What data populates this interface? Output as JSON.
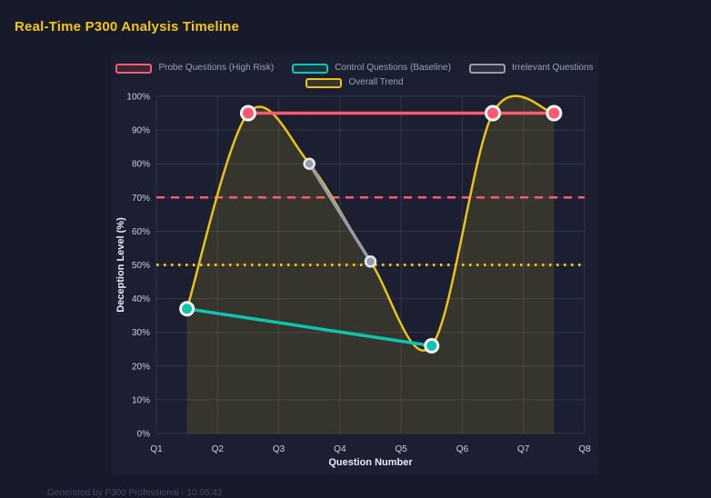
{
  "window": {
    "title": "Real-Time P300 Analysis Timeline",
    "footer_note": "Generated by P300 Professional - 10:05:42"
  },
  "colors": {
    "background": "#171a2a",
    "panel": "#1b1f31",
    "grid": "rgba(255,255,255,0.10)",
    "tick_label": "#ccd1dd",
    "axis_title": "#e9ecf4",
    "legend_label": "#9aa1b5",
    "title": "#f2c618",
    "footer": "#454b63",
    "area_fill": "rgba(233,195,25,0.13)"
  },
  "chart_data": {
    "type": "line",
    "title": "Real-Time P300 Analysis Timeline",
    "xlabel": "Question Number",
    "ylabel": "Deception Level (%)",
    "x_ticks": [
      "Q1",
      "Q2",
      "Q3",
      "Q4",
      "Q5",
      "Q6",
      "Q7",
      "Q8"
    ],
    "x_range": [
      1,
      8
    ],
    "ylim": [
      0,
      100
    ],
    "y_tick_step": 10,
    "y_tick_suffix": "%",
    "grid": true,
    "legend_position": "top",
    "legend_rows": [
      [
        0,
        1,
        2
      ],
      [
        3
      ]
    ],
    "series": [
      {
        "name": "Probe Questions (High Risk)",
        "slug": "probe",
        "color": "#fb5a6e",
        "points": [
          [
            2.5,
            95
          ],
          [
            6.5,
            95
          ],
          [
            7.5,
            95
          ]
        ],
        "line_width": 3.5,
        "marker_radius": 7.5,
        "marker_stroke": "#f4f5f7",
        "marker_stroke_width": 3,
        "smooth": false,
        "fill": false,
        "z": 4
      },
      {
        "name": "Control Questions (Baseline)",
        "slug": "control",
        "color": "#12c2b0",
        "points": [
          [
            1.5,
            37
          ],
          [
            5.5,
            26
          ]
        ],
        "line_width": 3.5,
        "marker_radius": 7,
        "marker_stroke": "#f4f5f7",
        "marker_stroke_width": 3,
        "smooth": false,
        "fill": false,
        "z": 3
      },
      {
        "name": "Irrelevant Questions",
        "slug": "irrelevant",
        "color": "#969ca8",
        "points": [
          [
            3.5,
            80
          ],
          [
            4.5,
            51
          ]
        ],
        "line_width": 3.5,
        "marker_radius": 5.5,
        "marker_stroke": "#e4e7ec",
        "marker_stroke_width": 2.5,
        "smooth": false,
        "fill": false,
        "z": 2
      },
      {
        "name": "Overall Trend",
        "slug": "trend",
        "color": "#e9c319",
        "points": [
          [
            1.5,
            37
          ],
          [
            2.5,
            95
          ],
          [
            3.5,
            80
          ],
          [
            4.5,
            51
          ],
          [
            5.5,
            26
          ],
          [
            6.5,
            95
          ],
          [
            7.5,
            95
          ]
        ],
        "line_width": 2.5,
        "marker_radius": 0,
        "marker_stroke": "none",
        "marker_stroke_width": 0,
        "smooth": true,
        "fill": true,
        "z": 1
      }
    ],
    "thresholds": [
      {
        "y": 70,
        "color": "#fb5a6e",
        "dash": "9 7",
        "width": 2.5
      },
      {
        "y": 50,
        "color": "#e9c319",
        "dash": "2.5 5.5",
        "width": 3
      }
    ]
  }
}
